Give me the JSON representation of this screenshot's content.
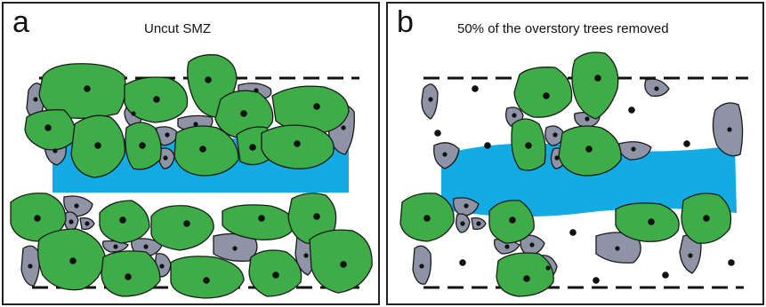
{
  "panels": [
    {
      "letter": "a",
      "title": "Uncut SMZ"
    },
    {
      "letter": "b",
      "title": "50% of the overstory trees removed"
    }
  ],
  "colors": {
    "stream": "#12ABE3",
    "overstory_tree": "#3EAD48",
    "understory_shrub": "#8E93A6",
    "outline": "#1a1a1a",
    "stump": "#111111"
  },
  "legend_icons": [
    "tree-crown-icon",
    "shrub-icon",
    "stump-icon",
    "stream-icon"
  ]
}
